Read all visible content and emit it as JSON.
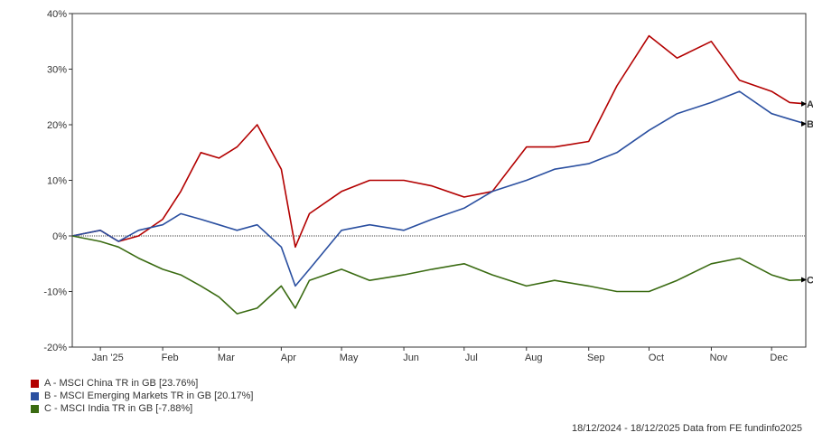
{
  "chart_data": {
    "type": "line",
    "y_ticks": [
      "40%",
      "30%",
      "20%",
      "10%",
      "0%",
      "-10%",
      "-20%"
    ],
    "ylim": [
      -20,
      40
    ],
    "x_ticks": [
      "Jan '25",
      "Feb",
      "Mar",
      "Apr",
      "May",
      "Jun",
      "Jul",
      "Aug",
      "Sep",
      "Oct",
      "Nov",
      "Dec"
    ],
    "x": [
      "2024-12-18",
      "2025-01-01",
      "2025-01-10",
      "2025-01-20",
      "2025-02-01",
      "2025-02-10",
      "2025-02-20",
      "2025-03-01",
      "2025-03-10",
      "2025-03-20",
      "2025-04-01",
      "2025-04-08",
      "2025-04-15",
      "2025-05-01",
      "2025-05-15",
      "2025-06-01",
      "2025-06-15",
      "2025-07-01",
      "2025-07-15",
      "2025-08-01",
      "2025-08-15",
      "2025-09-01",
      "2025-09-15",
      "2025-10-01",
      "2025-10-15",
      "2025-11-01",
      "2025-11-15",
      "2025-12-01",
      "2025-12-10",
      "2025-12-18"
    ],
    "series": [
      {
        "name": "A - MSCI China TR in GB [23.76%]",
        "end_label": "A",
        "color": "#b30000",
        "values": [
          0,
          1,
          -1,
          0,
          3,
          8,
          15,
          14,
          16,
          20,
          12,
          -2,
          4,
          8,
          10,
          10,
          9,
          7,
          8,
          16,
          16,
          17,
          27,
          36,
          32,
          35,
          28,
          26,
          24,
          23.76
        ]
      },
      {
        "name": "B - MSCI Emerging Markets TR in GB [20.17%]",
        "end_label": "B",
        "color": "#2a4fa0",
        "values": [
          0,
          1,
          -1,
          1,
          2,
          4,
          3,
          2,
          1,
          2,
          -2,
          -9,
          -6,
          1,
          2,
          1,
          3,
          5,
          8,
          10,
          12,
          13,
          15,
          19,
          22,
          24,
          26,
          22,
          21,
          20.17
        ]
      },
      {
        "name": "C - MSCI India TR in GB [-7.88%]",
        "end_label": "C",
        "color": "#3a6b12",
        "values": [
          0,
          -1,
          -2,
          -4,
          -6,
          -7,
          -9,
          -11,
          -14,
          -13,
          -9,
          -13,
          -8,
          -6,
          -8,
          -7,
          -6,
          -5,
          -7,
          -9,
          -8,
          -9,
          -10,
          -10,
          -8,
          -5,
          -4,
          -7,
          -8,
          -7.88
        ]
      }
    ],
    "grid": false,
    "zero_line": true
  },
  "footer": "18/12/2024 - 18/12/2025 Data from FE fundinfo2025"
}
